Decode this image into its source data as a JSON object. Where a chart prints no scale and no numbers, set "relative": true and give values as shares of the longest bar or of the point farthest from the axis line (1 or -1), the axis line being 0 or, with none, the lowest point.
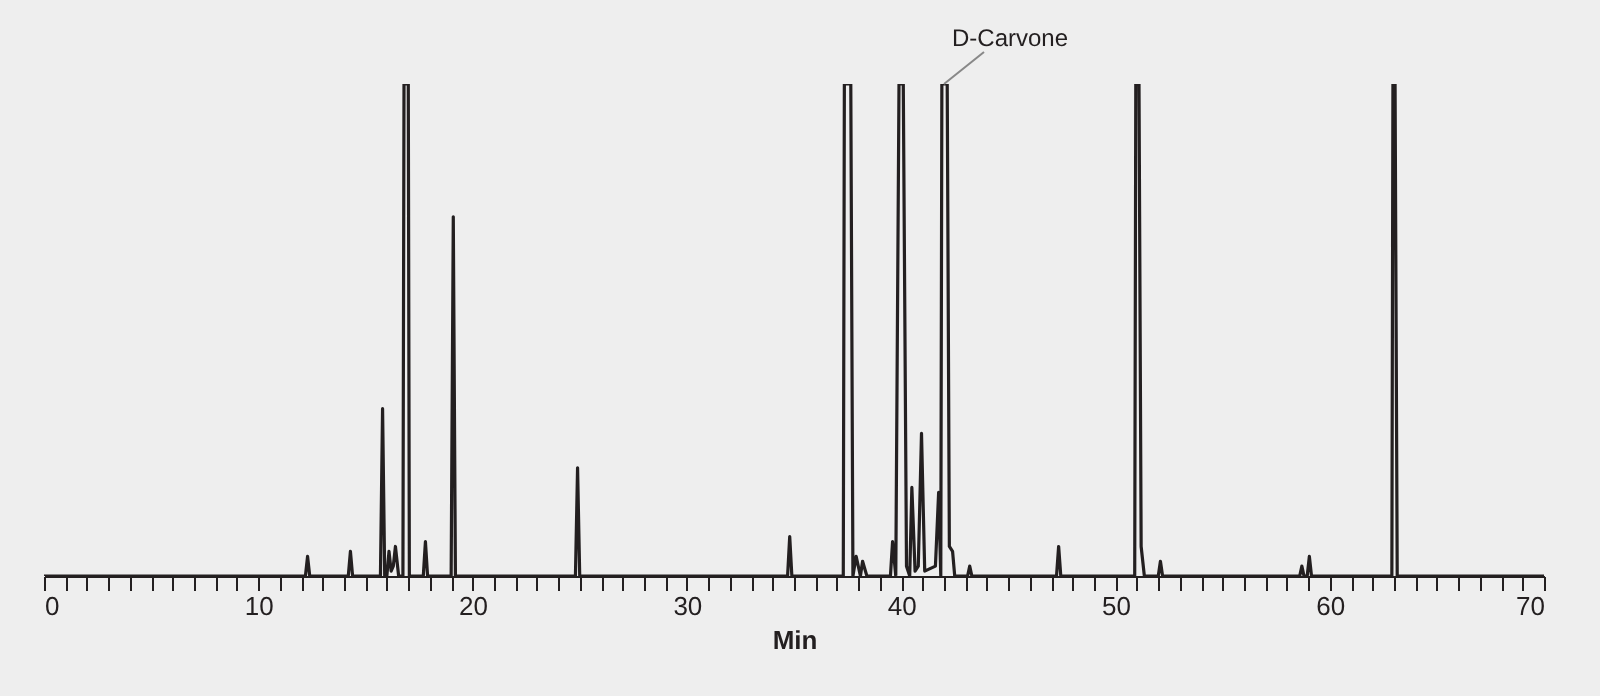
{
  "chart_data": {
    "type": "line",
    "relative": true,
    "xlabel": "Min",
    "color": "#231f20",
    "xlim": [
      0,
      70
    ],
    "xticks": [
      0,
      {
        "value": 1,
        "label": null
      },
      {
        "value": 2,
        "label": null
      },
      {
        "value": 3,
        "label": null
      },
      {
        "value": 4,
        "label": null
      },
      {
        "value": 5,
        "label": null
      },
      {
        "value": 6,
        "label": null
      },
      {
        "value": 7,
        "label": null
      },
      {
        "value": 8,
        "label": null
      },
      {
        "value": 9,
        "label": null
      },
      10,
      {
        "value": 11,
        "label": null
      },
      {
        "value": 12,
        "label": null
      },
      {
        "value": 13,
        "label": null
      },
      {
        "value": 14,
        "label": null
      },
      {
        "value": 15,
        "label": null
      },
      {
        "value": 16,
        "label": null
      },
      {
        "value": 17,
        "label": null
      },
      {
        "value": 18,
        "label": null
      },
      {
        "value": 19,
        "label": null
      },
      20,
      {
        "value": 21,
        "label": null
      },
      {
        "value": 22,
        "label": null
      },
      {
        "value": 23,
        "label": null
      },
      {
        "value": 24,
        "label": null
      },
      {
        "value": 25,
        "label": null
      },
      {
        "value": 26,
        "label": null
      },
      {
        "value": 27,
        "label": null
      },
      {
        "value": 28,
        "label": null
      },
      {
        "value": 29,
        "label": null
      },
      30,
      {
        "value": 31,
        "label": null
      },
      {
        "value": 32,
        "label": null
      },
      {
        "value": 33,
        "label": null
      },
      {
        "value": 34,
        "label": null
      },
      {
        "value": 35,
        "label": null
      },
      {
        "value": 36,
        "label": null
      },
      {
        "value": 37,
        "label": null
      },
      {
        "value": 38,
        "label": null
      },
      {
        "value": 39,
        "label": null
      },
      40,
      {
        "value": 41,
        "label": null
      },
      {
        "value": 42,
        "label": null
      },
      {
        "value": 43,
        "label": null
      },
      {
        "value": 44,
        "label": null
      },
      {
        "value": 45,
        "label": null
      },
      {
        "value": 46,
        "label": null
      },
      {
        "value": 47,
        "label": null
      },
      {
        "value": 48,
        "label": null
      },
      {
        "value": 49,
        "label": null
      },
      50,
      {
        "value": 51,
        "label": null
      },
      {
        "value": 52,
        "label": null
      },
      {
        "value": 53,
        "label": null
      },
      {
        "value": 54,
        "label": null
      },
      {
        "value": 55,
        "label": null
      },
      {
        "value": 56,
        "label": null
      },
      {
        "value": 57,
        "label": null
      },
      {
        "value": 58,
        "label": null
      },
      {
        "value": 59,
        "label": null
      },
      60,
      {
        "value": 61,
        "label": null
      },
      {
        "value": 62,
        "label": null
      },
      {
        "value": 63,
        "label": null
      },
      {
        "value": 64,
        "label": null
      },
      {
        "value": 65,
        "label": null
      },
      {
        "value": 66,
        "label": null
      },
      {
        "value": 67,
        "label": null
      },
      {
        "value": 68,
        "label": null
      },
      {
        "value": 69,
        "label": null
      },
      70
    ],
    "x": [
      0,
      12.2,
      12.3,
      12.4,
      14.2,
      14.3,
      14.4,
      15.7,
      15.8,
      15.9,
      16.0,
      16.1,
      16.2,
      16.3,
      16.4,
      16.55,
      16.75,
      16.8,
      17.0,
      17.05,
      17.7,
      17.8,
      17.9,
      19.0,
      19.1,
      19.2,
      24.8,
      24.9,
      25.0,
      34.7,
      34.8,
      34.9,
      37.3,
      37.35,
      37.65,
      37.75,
      37.9,
      38.1,
      38.2,
      38.4,
      39.5,
      39.6,
      39.75,
      39.9,
      40.1,
      40.25,
      40.4,
      40.5,
      40.65,
      40.8,
      40.95,
      41.1,
      41.6,
      41.75,
      41.85,
      41.9,
      42.15,
      42.25,
      42.4,
      42.5,
      43.1,
      43.2,
      43.3,
      47.25,
      47.35,
      47.45,
      50.9,
      50.95,
      51.1,
      51.2,
      51.35,
      52.0,
      52.1,
      52.2,
      58.6,
      58.7,
      58.8,
      58.95,
      59.05,
      59.15,
      62.9,
      62.95,
      63.05,
      63.15,
      70
    ],
    "values": [
      0,
      0,
      0.04,
      0,
      0,
      0.05,
      0,
      0,
      0.34,
      0,
      0,
      0.05,
      0.01,
      0.02,
      0.06,
      0,
      0,
      1,
      1,
      0,
      0,
      0.07,
      0,
      0,
      0.73,
      0,
      0,
      0.22,
      0,
      0,
      0.08,
      0,
      0,
      1,
      1,
      0,
      0.04,
      0,
      0.03,
      0,
      0,
      0.07,
      0,
      1,
      1,
      0.02,
      0,
      0.18,
      0.01,
      0.02,
      0.29,
      0.01,
      0.02,
      0.17,
      0,
      1,
      1,
      0.06,
      0.05,
      0,
      0,
      0.02,
      0,
      0,
      0.06,
      0,
      0,
      1,
      1,
      0.06,
      0,
      0,
      0.03,
      0,
      0,
      0.02,
      0,
      0,
      0.04,
      0,
      0,
      1,
      1,
      0,
      0
    ],
    "annotations": [
      {
        "text": "D-Carvone",
        "x": 42.0,
        "y": 1
      }
    ]
  }
}
